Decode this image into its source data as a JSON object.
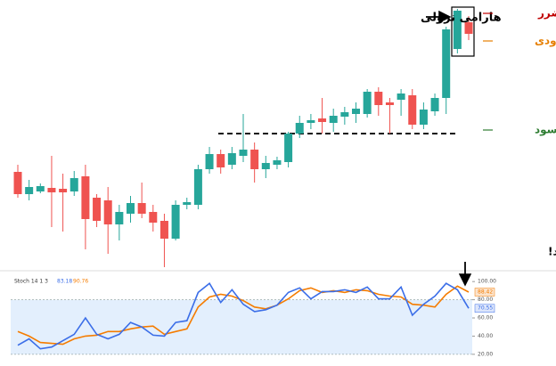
{
  "chart_data": [
    {
      "type": "candlestick",
      "open": [
        107,
        82,
        85,
        89,
        88,
        85,
        102,
        78,
        75,
        48,
        60,
        72,
        62,
        52,
        32,
        70,
        70,
        110,
        127,
        115,
        125,
        132,
        110,
        115,
        118,
        150,
        162,
        167,
        162,
        169,
        172,
        172,
        197,
        185,
        188,
        193,
        160,
        175,
        190,
        245,
        275
      ],
      "high": [
        115,
        98,
        94,
        125,
        105,
        108,
        115,
        82,
        90,
        70,
        80,
        95,
        70,
        60,
        75,
        78,
        115,
        135,
        132,
        135,
        172,
        140,
        125,
        124,
        152,
        170,
        172,
        190,
        178,
        180,
        185,
        200,
        202,
        190,
        200,
        200,
        185,
        195,
        270,
        290,
        282
      ],
      "low": [
        78,
        75,
        83,
        45,
        40,
        80,
        20,
        45,
        15,
        30,
        50,
        55,
        40,
        0,
        30,
        65,
        65,
        105,
        105,
        110,
        118,
        95,
        100,
        110,
        112,
        145,
        155,
        150,
        152,
        160,
        162,
        168,
        170,
        150,
        170,
        155,
        155,
        170,
        172,
        240,
        255
      ],
      "close": [
        82,
        90,
        91,
        84,
        84,
        100,
        54,
        52,
        48,
        62,
        72,
        60,
        50,
        32,
        70,
        73,
        110,
        127,
        112,
        128,
        132,
        110,
        117,
        120,
        150,
        162,
        165,
        163,
        170,
        174,
        178,
        197,
        182,
        182,
        195,
        160,
        177,
        190,
        267,
        288,
        262
      ],
      "up_color": "#26a69a",
      "down_color": "#ef5350",
      "ylim": [
        -5,
        300
      ],
      "support_level": 150,
      "annotations": [
        {
          "text": "هارامی نزولی",
          "color": "#000000"
        },
        {
          "text": "حد ضرر",
          "color": "#c00000"
        },
        {
          "text": "ورودی",
          "color": "#e67e00"
        },
        {
          "text": "حد سود",
          "color": "#2e7d32"
        },
        {
          "text": "حواس‌تان به قطع‌شدن خطوط باشد!",
          "color": "#000000"
        }
      ]
    },
    {
      "type": "line",
      "title": "Stoch 14 1 3",
      "series": [
        {
          "name": "83.18",
          "color": "#3b6ee8",
          "last_label": "70.55",
          "values": [
            30,
            37,
            26,
            28,
            35,
            42,
            60,
            42,
            37,
            42,
            55,
            50,
            41,
            40,
            55,
            57,
            88,
            98,
            77,
            91,
            75,
            67,
            69,
            74,
            88,
            93,
            81,
            89,
            89,
            91,
            88,
            94,
            81,
            81,
            94,
            63,
            75,
            84,
            98,
            91,
            70.55
          ]
        },
        {
          "name": "90.76",
          "color": "#f57c00",
          "last_label": "88.42",
          "values": [
            45,
            40,
            33,
            32,
            31,
            37,
            40,
            41,
            45,
            45,
            48,
            50,
            51,
            42,
            45,
            48,
            72,
            83,
            86,
            84,
            79,
            72,
            70,
            74,
            81,
            90,
            93,
            88,
            90,
            88,
            91,
            90,
            86,
            84,
            83,
            75,
            74,
            72,
            86,
            95,
            88.42
          ]
        }
      ],
      "ylim": [
        14,
        108
      ],
      "band": [
        20,
        80
      ],
      "band_color": "#e3effd",
      "yticks": [
        {
          "value": 100,
          "label": "100.00"
        },
        {
          "value": 80,
          "label": "80.00"
        },
        {
          "value": 60,
          "label": "60.00"
        },
        {
          "value": 40,
          "label": "40.00"
        },
        {
          "value": 20,
          "label": "20.00"
        }
      ]
    }
  ]
}
